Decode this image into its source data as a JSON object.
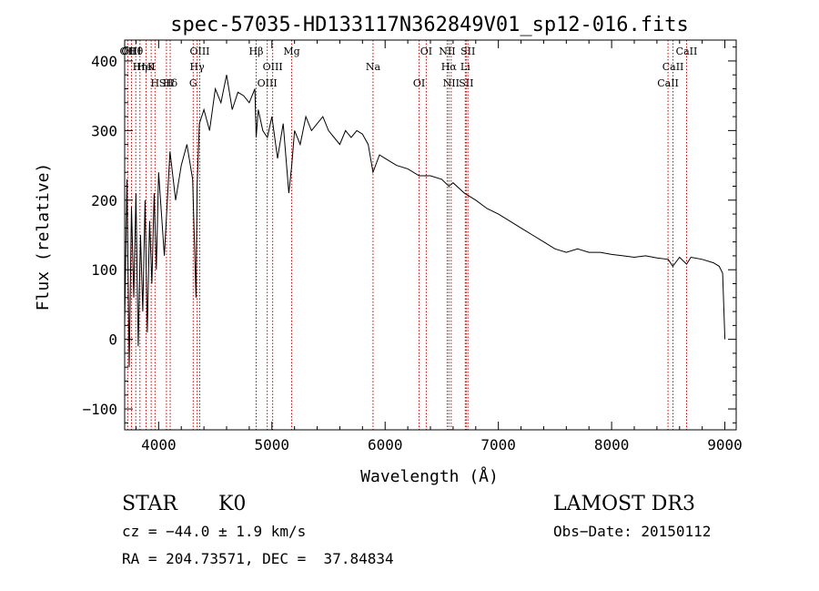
{
  "chart_data": {
    "type": "line",
    "title": "spec-57035-HD133117N362849V01_sp12-016.fits",
    "xlabel": "Wavelength (Å)",
    "ylabel": "Flux (relative)",
    "xlim": [
      3700,
      9100
    ],
    "ylim": [
      -130,
      430
    ],
    "x_ticks": [
      4000,
      5000,
      6000,
      7000,
      8000,
      9000
    ],
    "y_ticks": [
      -100,
      0,
      100,
      200,
      300,
      400
    ],
    "x_tick_labels": [
      "4000",
      "5000",
      "6000",
      "7000",
      "8000",
      "9000"
    ],
    "y_tick_labels": [
      "−100",
      "0",
      "100",
      "200",
      "300",
      "400"
    ],
    "grid": false,
    "series": [
      {
        "name": "spectrum",
        "x": [
          3700,
          3720,
          3740,
          3760,
          3780,
          3800,
          3820,
          3840,
          3860,
          3880,
          3900,
          3920,
          3940,
          3960,
          3980,
          4000,
          4050,
          4100,
          4150,
          4200,
          4250,
          4300,
          4330,
          4340,
          4360,
          4400,
          4450,
          4500,
          4550,
          4600,
          4650,
          4700,
          4750,
          4800,
          4850,
          4861,
          4880,
          4920,
          4960,
          5000,
          5050,
          5100,
          5150,
          5175,
          5200,
          5250,
          5300,
          5350,
          5400,
          5450,
          5500,
          5550,
          5600,
          5650,
          5700,
          5750,
          5800,
          5850,
          5893,
          5950,
          6000,
          6100,
          6200,
          6300,
          6400,
          6500,
          6563,
          6600,
          6700,
          6800,
          6900,
          7000,
          7100,
          7200,
          7300,
          7400,
          7500,
          7600,
          7700,
          7800,
          7900,
          8000,
          8100,
          8200,
          8300,
          8400,
          8500,
          8540,
          8600,
          8662,
          8700,
          8800,
          8900,
          8950,
          8980,
          9000
        ],
        "y": [
          20,
          230,
          -40,
          190,
          60,
          210,
          -10,
          150,
          40,
          200,
          10,
          170,
          80,
          210,
          100,
          240,
          120,
          270,
          200,
          250,
          280,
          230,
          60,
          220,
          310,
          330,
          300,
          360,
          340,
          380,
          330,
          355,
          350,
          340,
          360,
          290,
          330,
          300,
          290,
          320,
          260,
          310,
          210,
          250,
          300,
          280,
          320,
          300,
          310,
          320,
          300,
          290,
          280,
          300,
          290,
          300,
          295,
          280,
          240,
          265,
          260,
          250,
          245,
          235,
          235,
          230,
          220,
          225,
          210,
          200,
          188,
          180,
          170,
          160,
          150,
          140,
          130,
          125,
          130,
          125,
          125,
          122,
          120,
          118,
          120,
          117,
          115,
          105,
          118,
          108,
          118,
          115,
          110,
          105,
          95,
          0
        ]
      }
    ],
    "line_markers": [
      {
        "label": "Hθ",
        "x": 3798
      },
      {
        "label": "K",
        "x": 3934
      },
      {
        "label": "Hδ",
        "x": 4102
      },
      {
        "label": "OII",
        "x": 3727
      },
      {
        "label": "HeI",
        "x": 3889
      },
      {
        "label": "SII",
        "x": 4069
      },
      {
        "label": "OIII",
        "x": 3760
      },
      {
        "label": "Hη",
        "x": 3835
      },
      {
        "label": "H",
        "x": 3968
      },
      {
        "label": "OIII",
        "x": 4363
      },
      {
        "label": "Hγ",
        "x": 4340
      },
      {
        "label": "G",
        "x": 4305
      },
      {
        "label": "Hβ",
        "x": 4861
      },
      {
        "label": "OIII",
        "x": 5007
      },
      {
        "label": "OIII",
        "x": 4959
      },
      {
        "label": "Mg",
        "x": 5175
      },
      {
        "label": "Na",
        "x": 5893
      },
      {
        "label": "OI",
        "x": 6300
      },
      {
        "label": "OI",
        "x": 6363
      },
      {
        "label": "Hα",
        "x": 6563
      },
      {
        "label": "SII",
        "x": 6716
      },
      {
        "label": "NII",
        "x": 6548
      },
      {
        "label": "Li",
        "x": 6708
      },
      {
        "label": "NII",
        "x": 6583
      },
      {
        "label": "SII",
        "x": 6731
      },
      {
        "label": "CaII",
        "x": 8542
      },
      {
        "label": "CaII",
        "x": 8498
      },
      {
        "label": "CaII",
        "x": 8662
      }
    ]
  },
  "info": {
    "class_label": "STAR",
    "subclass": "K0",
    "survey": "LAMOST DR3",
    "cz_line": "cz = −44.0 ± 1.9 km/s",
    "obs_date": "Obs−Date: 20150112",
    "coords": "RA = 204.73571, DEC =  37.84834"
  },
  "colors": {
    "spectrum": "#000000",
    "marker": "#cc0000",
    "axes": "#000000",
    "background": "#ffffff"
  }
}
